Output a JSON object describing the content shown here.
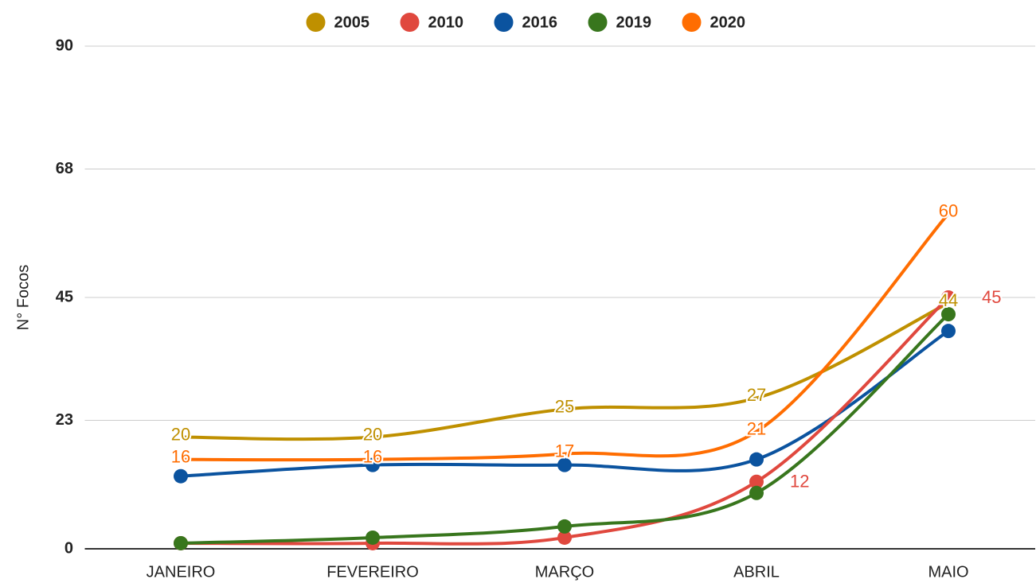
{
  "chart_data": {
    "type": "line",
    "y_label": "N° Focos",
    "categories": [
      "JANEIRO",
      "FEVEREIRO",
      "MARÇO",
      "ABRIL",
      "MAIO"
    ],
    "series": [
      {
        "name": "2005",
        "color": "#bf9000",
        "values": [
          20,
          20,
          25,
          27,
          44
        ],
        "markers": false,
        "labeled_points": [
          0,
          1,
          2,
          3,
          4
        ],
        "label_position": "center"
      },
      {
        "name": "2010",
        "color": "#e0483e",
        "values": [
          1,
          1,
          2,
          12,
          45
        ],
        "markers": true,
        "labeled_points": [
          3,
          4
        ],
        "label_position": "right"
      },
      {
        "name": "2016",
        "color": "#0b539f",
        "values": [
          13,
          15,
          15,
          16,
          39
        ],
        "markers": true,
        "labeled_points": [],
        "label_position": "center"
      },
      {
        "name": "2019",
        "color": "#38761d",
        "values": [
          1,
          2,
          4,
          10,
          42
        ],
        "markers": true,
        "labeled_points": [],
        "label_position": "center"
      },
      {
        "name": "2020",
        "color": "#ff6d01",
        "values": [
          16,
          16,
          17,
          21,
          60
        ],
        "markers": false,
        "labeled_points": [
          0,
          1,
          2,
          3,
          4
        ],
        "label_position": "center"
      }
    ],
    "ylim": [
      0,
      90
    ],
    "yticks": [
      0,
      23,
      45,
      68,
      90
    ],
    "grid": true,
    "smooth": true,
    "legend": "top"
  }
}
